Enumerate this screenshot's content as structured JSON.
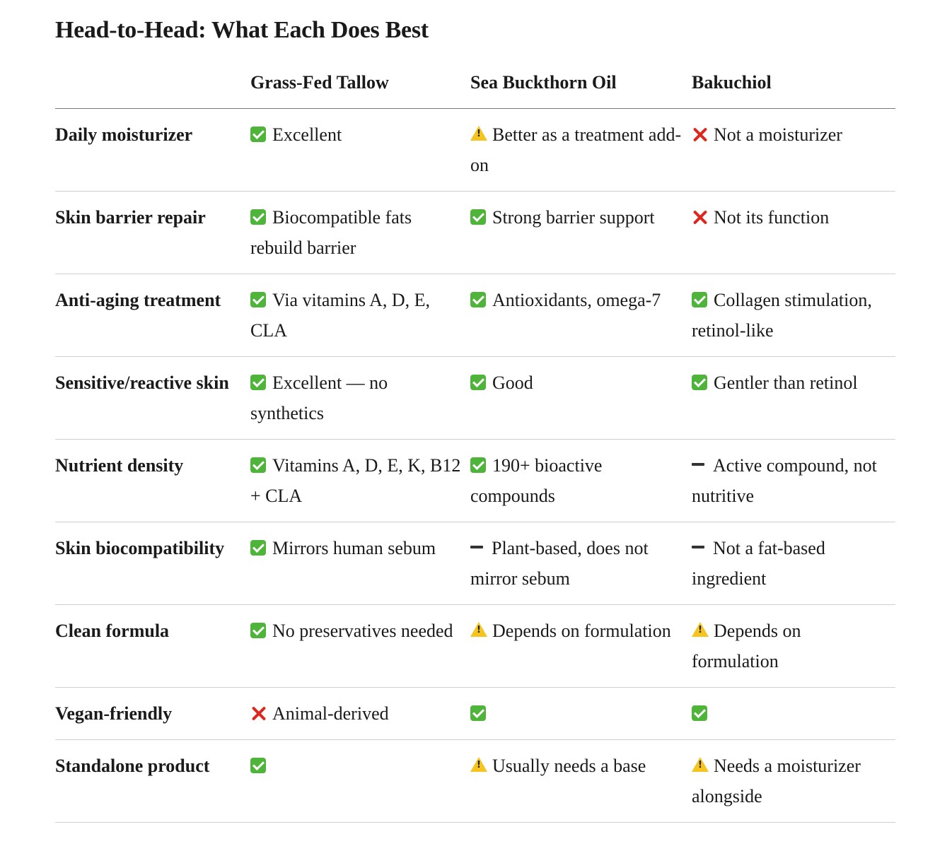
{
  "title": "Head-to-Head: What Each Does Best",
  "columns": [
    "",
    "Grass-Fed Tallow",
    "Sea Buckthorn Oil",
    "Bakuchiol"
  ],
  "rows": [
    {
      "label": "Daily moisturizer",
      "cells": [
        {
          "icon": "check",
          "text": "Excellent"
        },
        {
          "icon": "warn",
          "text": "Better as a treatment add-on"
        },
        {
          "icon": "cross",
          "text": "Not a moisturizer"
        }
      ]
    },
    {
      "label": "Skin barrier repair",
      "cells": [
        {
          "icon": "check",
          "text": "Biocompatible fats rebuild barrier"
        },
        {
          "icon": "check",
          "text": "Strong barrier support"
        },
        {
          "icon": "cross",
          "text": "Not its function"
        }
      ]
    },
    {
      "label": "Anti-aging treatment",
      "cells": [
        {
          "icon": "check",
          "text": "Via vitamins A, D, E, CLA"
        },
        {
          "icon": "check",
          "text": "Antioxidants, omega-7"
        },
        {
          "icon": "check",
          "text": "Collagen stimulation, retinol-like"
        }
      ]
    },
    {
      "label": "Sensitive/reactive skin",
      "cells": [
        {
          "icon": "check",
          "text": "Excellent — no synthetics"
        },
        {
          "icon": "check",
          "text": "Good"
        },
        {
          "icon": "check",
          "text": "Gentler than retinol"
        }
      ]
    },
    {
      "label": "Nutrient density",
      "cells": [
        {
          "icon": "check",
          "text": "Vitamins A, D, E, K, B12 + CLA"
        },
        {
          "icon": "check",
          "text": "190+ bioactive compounds"
        },
        {
          "icon": "dash",
          "text": "Active compound, not nutritive"
        }
      ]
    },
    {
      "label": "Skin biocompatibility",
      "cells": [
        {
          "icon": "check",
          "text": "Mirrors human sebum"
        },
        {
          "icon": "dash",
          "text": "Plant-based, does not mirror sebum"
        },
        {
          "icon": "dash",
          "text": "Not a fat-based ingredient"
        }
      ]
    },
    {
      "label": "Clean formula",
      "cells": [
        {
          "icon": "check",
          "text": "No preservatives needed"
        },
        {
          "icon": "warn",
          "text": "Depends on formulation"
        },
        {
          "icon": "warn",
          "text": "Depends on formulation"
        }
      ]
    },
    {
      "label": "Vegan-friendly",
      "cells": [
        {
          "icon": "cross",
          "text": "Animal-derived"
        },
        {
          "icon": "check",
          "text": ""
        },
        {
          "icon": "check",
          "text": ""
        }
      ]
    },
    {
      "label": "Standalone product",
      "cells": [
        {
          "icon": "check",
          "text": ""
        },
        {
          "icon": "warn",
          "text": "Usually needs a base"
        },
        {
          "icon": "warn",
          "text": "Needs a moisturizer alongside"
        }
      ]
    }
  ]
}
